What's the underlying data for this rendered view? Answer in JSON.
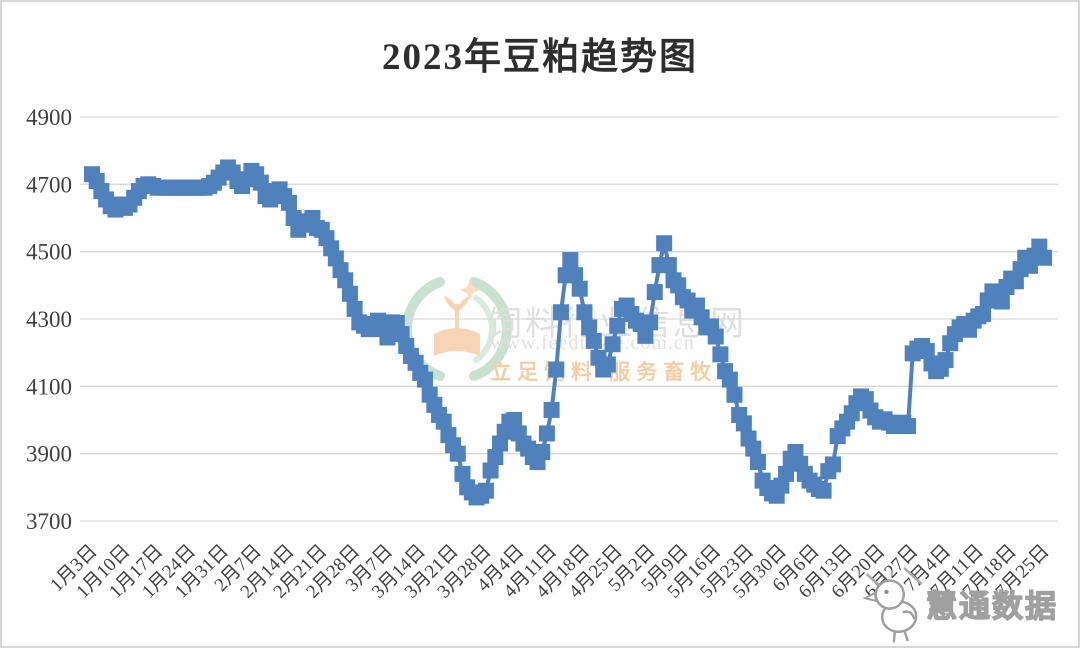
{
  "title": "2023年豆粕趋势图",
  "watermark_center": {
    "line1": "饲料行业信息网",
    "line2": "www.feedtrade.com.cn",
    "line3": "立足饲料  服务畜牧"
  },
  "watermark_corner": {
    "label": "慧通数据"
  },
  "colors": {
    "series": "#4F81BD",
    "gridline": "#D9D9D9",
    "axis_text": "#404040",
    "title_text": "#2E2E2E",
    "watermark_green": "#9EC9AB",
    "watermark_green_light": "#BCD9C4",
    "watermark_orange": "#F0A75E",
    "corner_outline": "#A0A0A0",
    "page_border": "#D6D6D6"
  },
  "chart_data": {
    "type": "line",
    "title": "2023年豆粕趋势图",
    "legend": "none",
    "grid": "horizontal",
    "marker": "square",
    "ylim": [
      3700,
      4900
    ],
    "y_ticks": [
      3700,
      3900,
      4100,
      4300,
      4500,
      4700,
      4900
    ],
    "x_tick_interval_days": 7,
    "x_tick_labels": [
      "1月3日",
      "1月10日",
      "1月17日",
      "1月24日",
      "1月31日",
      "2月7日",
      "2月14日",
      "2月21日",
      "2月28日",
      "3月7日",
      "3月14日",
      "3月21日",
      "3月28日",
      "4月4日",
      "4月11日",
      "4月18日",
      "4月25日",
      "5月2日",
      "5月9日",
      "5月16日",
      "5月23日",
      "5月30日",
      "6月6日",
      "6月13日",
      "6月20日",
      "6月27日",
      "7月4日",
      "7月11日",
      "7月18日",
      "7月25日"
    ],
    "series": [
      {
        "color": "#4F81BD",
        "values": [
          4730,
          4710,
          4680,
          4655,
          4635,
          4625,
          4640,
          4630,
          4640,
          4660,
          4680,
          4695,
          4700,
          4695,
          4690,
          4690,
          4690,
          4690,
          4690,
          4690,
          4690,
          4690,
          4690,
          4690,
          4690,
          4695,
          4705,
          4720,
          4735,
          4750,
          4735,
          4710,
          4695,
          4715,
          4740,
          4730,
          4705,
          4665,
          4655,
          4680,
          4685,
          4665,
          4645,
          4600,
          4565,
          4580,
          4590,
          4600,
          4570,
          4565,
          4540,
          4510,
          4480,
          4445,
          4415,
          4375,
          4330,
          4290,
          4280,
          4270,
          4285,
          4295,
          4270,
          4245,
          4290,
          4288,
          4255,
          4220,
          4190,
          4170,
          4140,
          4120,
          4075,
          4045,
          4015,
          3995,
          3955,
          3925,
          3900,
          3840,
          3800,
          3785,
          3770,
          3775,
          3790,
          3850,
          3890,
          3930,
          3965,
          3995,
          4000,
          3960,
          3930,
          3915,
          3890,
          3875,
          3905,
          3960,
          4030,
          4150,
          4320,
          4430,
          4475,
          4430,
          4390,
          4320,
          4275,
          4235,
          4185,
          4150,
          4165,
          4225,
          4280,
          4330,
          4340,
          4315,
          4295,
          4285,
          4250,
          4290,
          4380,
          4460,
          4525,
          4460,
          4415,
          4400,
          4365,
          4355,
          4325,
          4340,
          4305,
          4275,
          4278,
          4248,
          4195,
          4145,
          4120,
          4075,
          4015,
          3990,
          3945,
          3915,
          3875,
          3820,
          3798,
          3782,
          3775,
          3805,
          3840,
          3885,
          3905,
          3870,
          3840,
          3820,
          3808,
          3795,
          3790,
          3848,
          3868,
          3952,
          3975,
          3995,
          4020,
          4050,
          4070,
          4062,
          4028,
          4008,
          3995,
          4002,
          3992,
          3982,
          3988,
          3992,
          3982,
          4198,
          4212,
          4220,
          4205,
          4168,
          4145,
          4152,
          4178,
          4228,
          4255,
          4275,
          4285,
          4268,
          4295,
          4308,
          4315,
          4355,
          4382,
          4365,
          4352,
          4395,
          4420,
          4412,
          4448,
          4482,
          4458,
          4488,
          4515,
          4482
        ]
      }
    ]
  }
}
